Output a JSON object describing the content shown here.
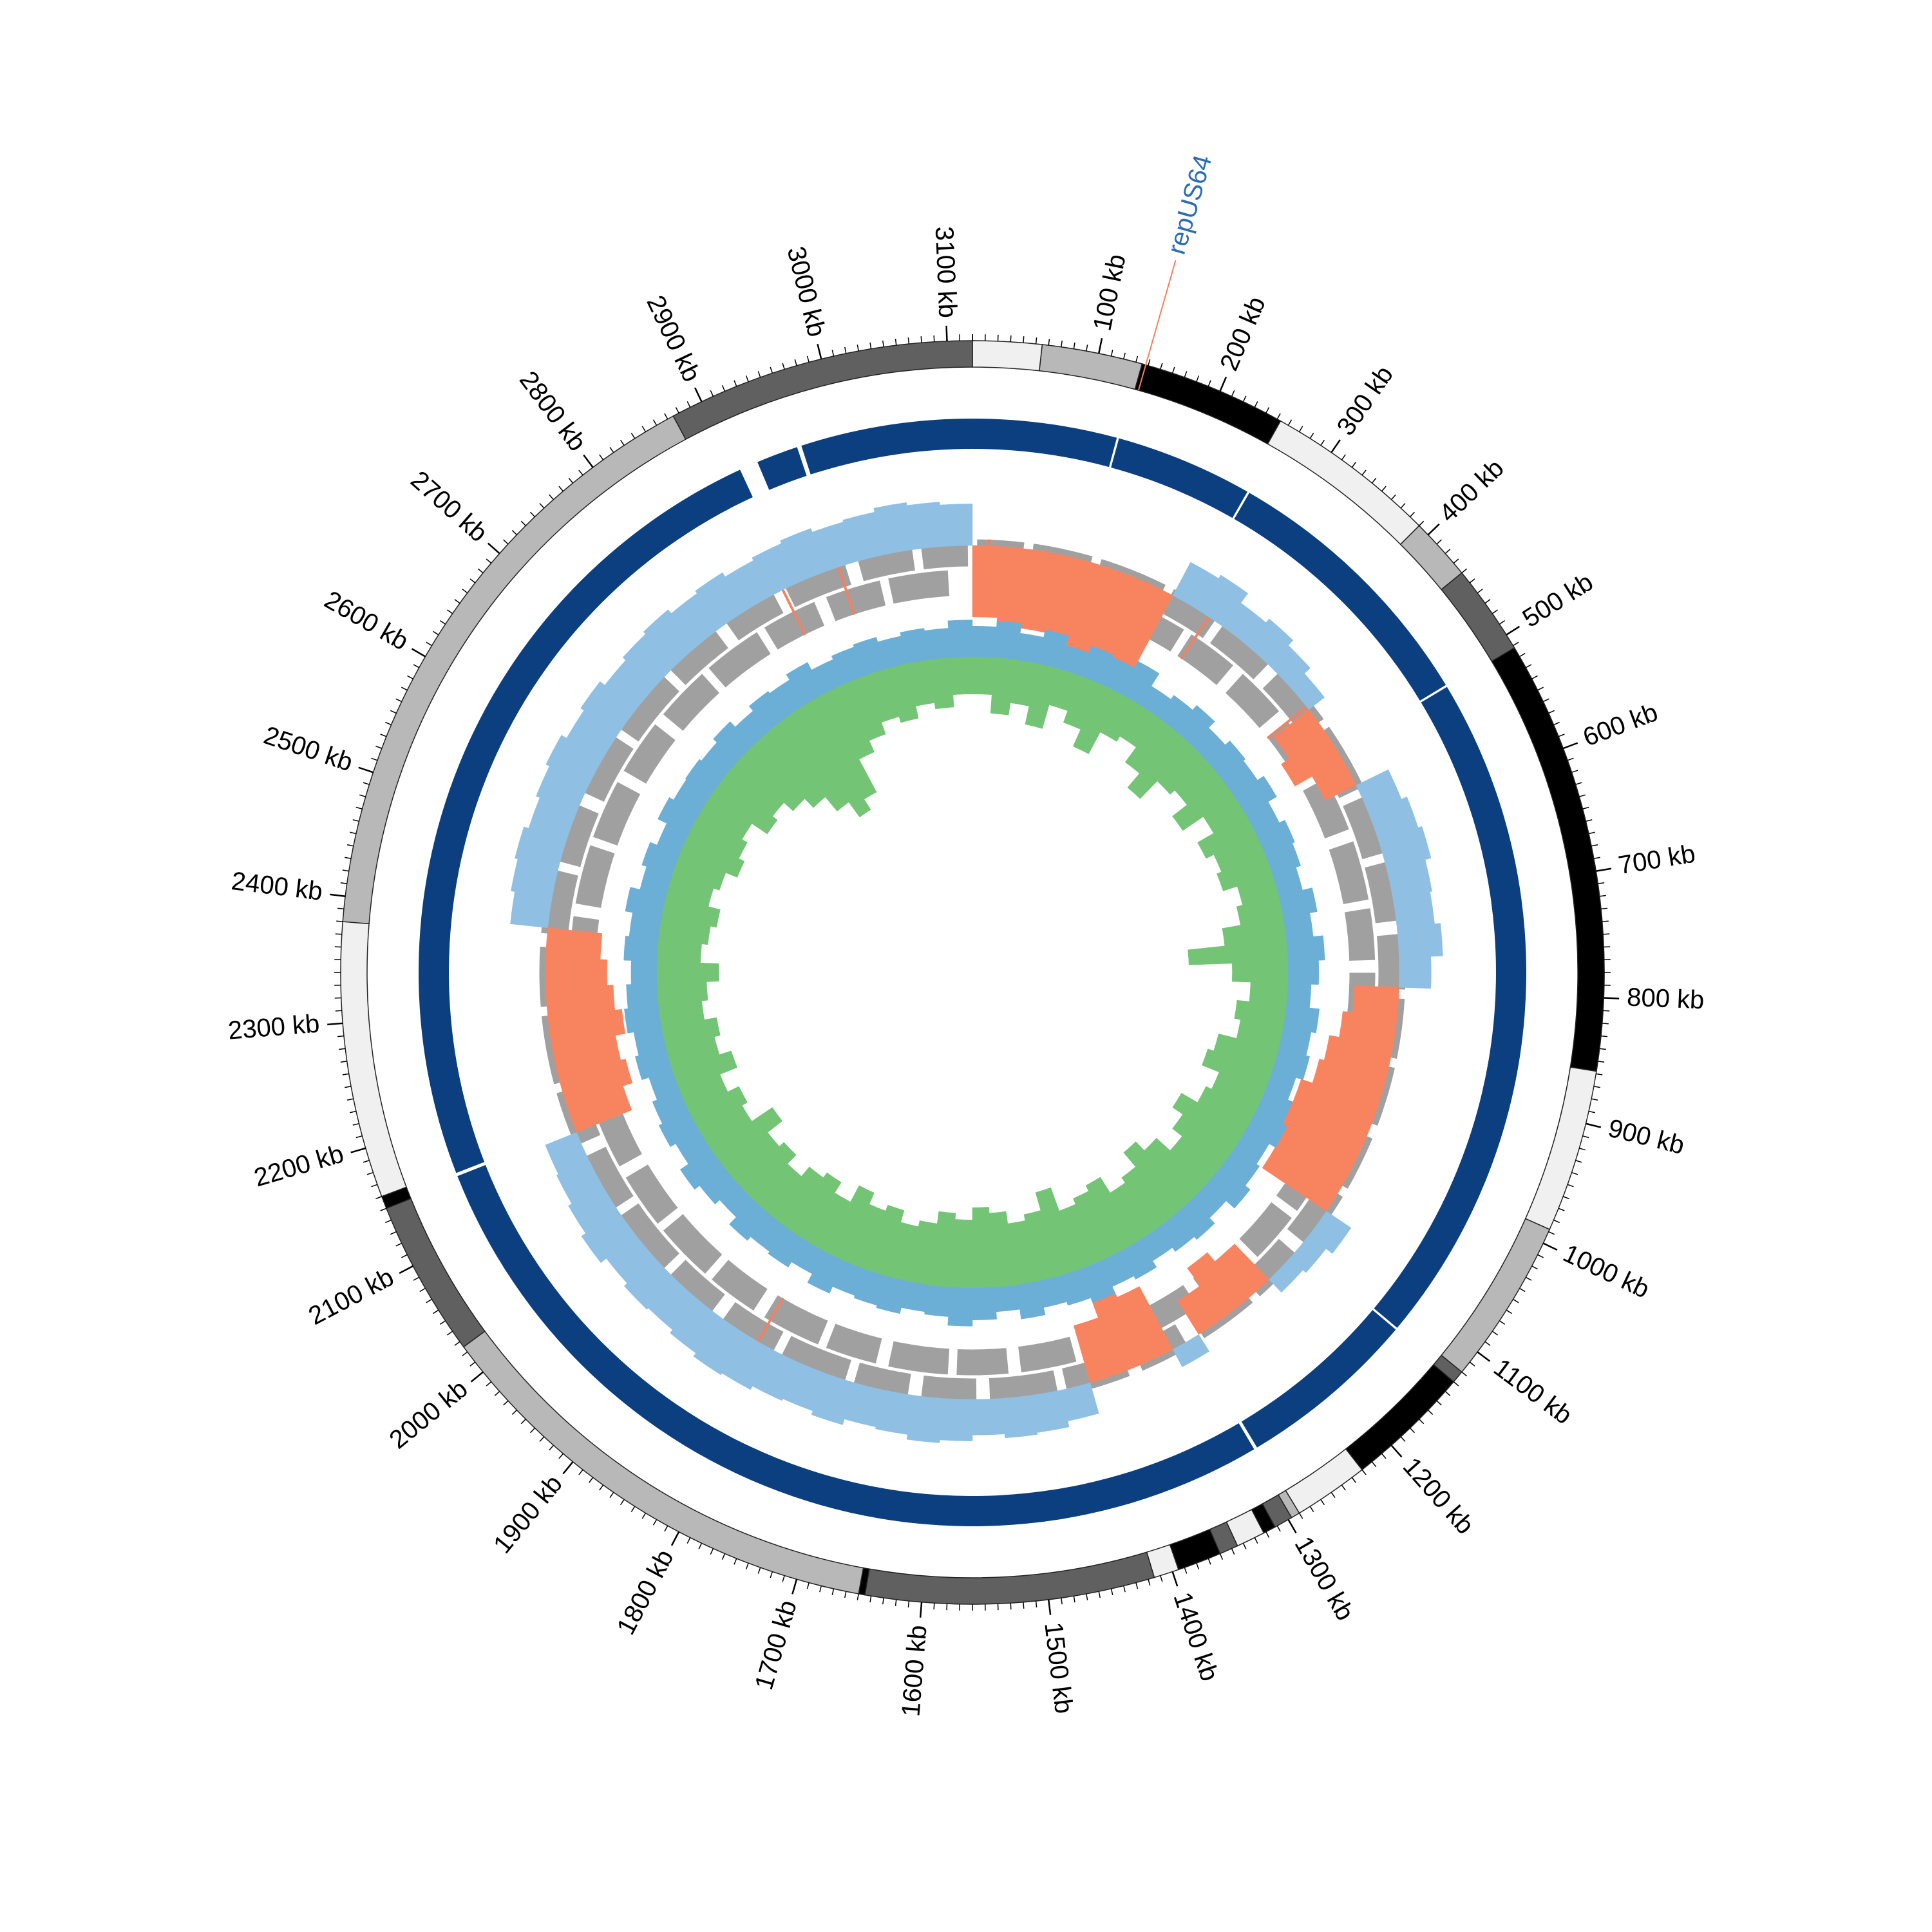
{
  "chart_data": {
    "type": "circular-genome",
    "xlim": [
      0,
      3120
    ],
    "minor_xtick_step": 10,
    "xticks": [
      {
        "value": 100,
        "label": "100 kb"
      },
      {
        "value": 200,
        "label": "200 kb"
      },
      {
        "value": 300,
        "label": "300 kb"
      },
      {
        "value": 400,
        "label": "400 kb"
      },
      {
        "value": 500,
        "label": "500 kb"
      },
      {
        "value": 600,
        "label": "600 kb"
      },
      {
        "value": 700,
        "label": "700 kb"
      },
      {
        "value": 800,
        "label": "800 kb"
      },
      {
        "value": 900,
        "label": "900 kb"
      },
      {
        "value": 1000,
        "label": "1000 kb"
      },
      {
        "value": 1100,
        "label": "1100 kb"
      },
      {
        "value": 1200,
        "label": "1200 kb"
      },
      {
        "value": 1300,
        "label": "1300 kb"
      },
      {
        "value": 1400,
        "label": "1400 kb"
      },
      {
        "value": 1500,
        "label": "1500 kb"
      },
      {
        "value": 1600,
        "label": "1600 kb"
      },
      {
        "value": 1700,
        "label": "1700 kb"
      },
      {
        "value": 1800,
        "label": "1800 kb"
      },
      {
        "value": 1900,
        "label": "1900 kb"
      },
      {
        "value": 2000,
        "label": "2000 kb"
      },
      {
        "value": 2100,
        "label": "2100 kb"
      },
      {
        "value": 2200,
        "label": "2200 kb"
      },
      {
        "value": 2300,
        "label": "2300 kb"
      },
      {
        "value": 2400,
        "label": "2400 kb"
      },
      {
        "value": 2500,
        "label": "2500 kb"
      },
      {
        "value": 2600,
        "label": "2600 kb"
      },
      {
        "value": 2700,
        "label": "2700 kb"
      },
      {
        "value": 2800,
        "label": "2800 kb"
      },
      {
        "value": 2900,
        "label": "2900 kb"
      },
      {
        "value": 3000,
        "label": "3000 kb"
      },
      {
        "value": 3100,
        "label": "3100 kb"
      }
    ],
    "ideogram": [
      {
        "start": 0,
        "end": 55,
        "color": "#f0f0f0"
      },
      {
        "start": 55,
        "end": 135,
        "color": "#b8b8b8"
      },
      {
        "start": 135,
        "end": 253,
        "color": "#000000"
      },
      {
        "start": 253,
        "end": 390,
        "color": "#f0f0f0"
      },
      {
        "start": 390,
        "end": 440,
        "color": "#b8b8b8"
      },
      {
        "start": 440,
        "end": 512,
        "color": "#606060"
      },
      {
        "start": 512,
        "end": 858,
        "color": "#000000"
      },
      {
        "start": 858,
        "end": 988,
        "color": "#f0f0f0"
      },
      {
        "start": 988,
        "end": 1120,
        "color": "#b8b8b8"
      },
      {
        "start": 1120,
        "end": 1130,
        "color": "#606060"
      },
      {
        "start": 1130,
        "end": 1230,
        "color": "#000000"
      },
      {
        "start": 1230,
        "end": 1290,
        "color": "#f0f0f0"
      },
      {
        "start": 1290,
        "end": 1297,
        "color": "#b8b8b8"
      },
      {
        "start": 1297,
        "end": 1312,
        "color": "#606060"
      },
      {
        "start": 1312,
        "end": 1322,
        "color": "#000000"
      },
      {
        "start": 1322,
        "end": 1345,
        "color": "#f0f0f0"
      },
      {
        "start": 1345,
        "end": 1360,
        "color": "#606060"
      },
      {
        "start": 1360,
        "end": 1395,
        "color": "#000000"
      },
      {
        "start": 1395,
        "end": 1415,
        "color": "#f0f0f0"
      },
      {
        "start": 1415,
        "end": 1645,
        "color": "#606060"
      },
      {
        "start": 1645,
        "end": 1650,
        "color": "#000000"
      },
      {
        "start": 1650,
        "end": 2025,
        "color": "#b8b8b8"
      },
      {
        "start": 2025,
        "end": 2150,
        "color": "#606060"
      },
      {
        "start": 2150,
        "end": 2160,
        "color": "#000000"
      },
      {
        "start": 2160,
        "end": 2380,
        "color": "#f0f0f0"
      },
      {
        "start": 2380,
        "end": 2875,
        "color": "#b8b8b8"
      },
      {
        "start": 2875,
        "end": 3120,
        "color": "#606060"
      }
    ],
    "annotation": {
      "text": "repUS64",
      "position": 138,
      "color": "#2a6db5",
      "line_color": "#f4805e"
    },
    "genes": [
      {
        "color": "#a0a0a0",
        "intervals": [
          [
            5,
            60
          ],
          [
            70,
            140
          ],
          [
            150,
            230
          ],
          [
            240,
            300
          ],
          [
            310,
            380
          ],
          [
            395,
            470
          ],
          [
            480,
            560
          ],
          [
            570,
            640
          ],
          [
            650,
            720
          ],
          [
            735,
            800
          ],
          [
            810,
            880
          ],
          [
            890,
            960
          ],
          [
            975,
            1040
          ],
          [
            1050,
            1120
          ],
          [
            1135,
            1200
          ],
          [
            1210,
            1280
          ],
          [
            1300,
            1360
          ],
          [
            1375,
            1450
          ],
          [
            1460,
            1540
          ],
          [
            1555,
            1620
          ],
          [
            1635,
            1700
          ],
          [
            1710,
            1790
          ],
          [
            1800,
            1870
          ],
          [
            1885,
            1950
          ],
          [
            1960,
            2040
          ],
          [
            2050,
            2120
          ],
          [
            2135,
            2200
          ],
          [
            2210,
            2290
          ],
          [
            2300,
            2370
          ],
          [
            2385,
            2460
          ],
          [
            2470,
            2540
          ],
          [
            2555,
            2630
          ],
          [
            2640,
            2720
          ],
          [
            2730,
            2800
          ],
          [
            2815,
            2880
          ],
          [
            2895,
            2970
          ],
          [
            2985,
            3050
          ],
          [
            3060,
            3115
          ]
        ]
      },
      {
        "color": "#a0a0a0",
        "intervals": [
          [
            0,
            35
          ],
          [
            45,
            110
          ],
          [
            125,
            190
          ],
          [
            200,
            275
          ],
          [
            285,
            350
          ],
          [
            365,
            430
          ],
          [
            445,
            520
          ],
          [
            530,
            600
          ],
          [
            615,
            690
          ],
          [
            700,
            765
          ],
          [
            780,
            850
          ],
          [
            860,
            930
          ],
          [
            945,
            1010
          ],
          [
            1020,
            1095
          ],
          [
            1105,
            1170
          ],
          [
            1185,
            1250
          ],
          [
            1265,
            1330
          ],
          [
            1345,
            1420
          ],
          [
            1430,
            1500
          ],
          [
            1515,
            1580
          ],
          [
            1590,
            1665
          ],
          [
            1680,
            1745
          ],
          [
            1755,
            1830
          ],
          [
            1845,
            1910
          ],
          [
            1920,
            1995
          ],
          [
            2005,
            2075
          ],
          [
            2090,
            2160
          ],
          [
            2170,
            2245
          ],
          [
            2255,
            2330
          ],
          [
            2345,
            2410
          ],
          [
            2425,
            2500
          ],
          [
            2510,
            2585
          ],
          [
            2600,
            2670
          ],
          [
            2685,
            2755
          ],
          [
            2765,
            2840
          ],
          [
            2850,
            2920
          ],
          [
            2935,
            3005
          ],
          [
            3015,
            3090
          ]
        ]
      }
    ],
    "rna_features": {
      "color": "#f4805e",
      "intervals": [
        [
          18,
          21
        ],
        [
          290,
          293
        ],
        [
          445,
          448
        ],
        [
          1820,
          1823
        ],
        [
          2890,
          2893
        ],
        [
          2960,
          2963
        ]
      ]
    },
    "contigs": {
      "color": "#0b3f7f",
      "intervals": [
        [
          0,
          131
        ],
        [
          133,
          258
        ],
        [
          260,
          509
        ],
        [
          511,
          1126
        ],
        [
          1128,
          1292
        ],
        [
          1295,
          2153
        ],
        [
          2156,
          2905
        ],
        [
          2922,
          2960
        ],
        [
          2964,
          3120
        ]
      ]
    },
    "tracks": [
      {
        "ylim": [
          -1,
          0.5
        ],
        "series": [
          {
            "pos_color": "#8fc0e3",
            "neg_color": "#f8845f",
            "values": [
              -0.72,
              -0.85,
              -0.8,
              -0.9,
              -0.95,
              -1.0,
              -0.88,
              0.38,
              0.42,
              0.3,
              0.35,
              0.28,
              0.2,
              -0.45,
              -0.55,
              -0.35,
              0.36,
              0.42,
              0.46,
              0.4,
              0.38,
              0.44,
              0.32,
              -0.45,
              -0.55,
              -0.65,
              -0.7,
              -0.82,
              -0.9,
              -0.95,
              -0.78,
              0.3,
              0.22,
              0.18,
              -0.5,
              -0.62,
              -0.4,
              0.2,
              -0.72,
              -0.8,
              -0.6,
              0.32,
              0.38,
              0.4,
              0.36,
              0.42,
              0.45,
              0.4,
              0.38,
              0.44,
              0.4,
              0.42,
              0.46,
              0.48,
              0.44,
              0.4,
              0.42,
              0.38,
              0.45,
              0.4,
              0.36,
              0.34,
              -0.6,
              -0.7,
              -0.65,
              -0.75,
              -0.68,
              -0.62,
              -0.55,
              0.38,
              0.42,
              0.45,
              0.4,
              0.44,
              0.48,
              0.42,
              0.46,
              0.4,
              0.44,
              0.47,
              0.42,
              0.45,
              0.4,
              0.43,
              0.46,
              0.42,
              0.44,
              0.48,
              0.45,
              0.42
            ]
          }
        ]
      },
      {
        "ylim": [
          -1,
          0.35
        ],
        "series": [
          {
            "pos_color": "#6baed6",
            "values": [
              0.25,
              0.3,
              0.22,
              0.28,
              0.2,
              0.26,
              0.24,
              0.3,
              0.18,
              0.22,
              0.27,
              0.2,
              0.25,
              0.23,
              0.29,
              0.21,
              0.26,
              0.24,
              0.2,
              0.28,
              0.22,
              0.3,
              0.25,
              0.19,
              0.27,
              0.23,
              0.26,
              0.2,
              0.24,
              0.28,
              0.22,
              0.25,
              0.3,
              0.21,
              0.27,
              0.24,
              0.2,
              0.26,
              0.23,
              0.29,
              0.25,
              0.22,
              0.28,
              0.2,
              0.26,
              0.31,
              0.24,
              0.22,
              0.27,
              0.25,
              0.23,
              0.29,
              0.21,
              0.26,
              0.24,
              0.28,
              0.2,
              0.25,
              0.3,
              0.22,
              0.27,
              0.24,
              0.2,
              0.26,
              0.23,
              0.28,
              0.25,
              0.21,
              0.27,
              0.24,
              0.3,
              0.22,
              0.26,
              0.2,
              0.28,
              0.24,
              0.25,
              0.23,
              0.27,
              0.21,
              0.26,
              0.24,
              0.29,
              0.22,
              0.25,
              0.27,
              0.23,
              0.26,
              0.24,
              0.3
            ]
          },
          {
            "neg_color": "#74c476",
            "values": [
              -0.3,
              -0.45,
              -0.35,
              -0.5,
              -0.3,
              -0.4,
              -0.55,
              -0.35,
              -0.3,
              -0.45,
              -0.6,
              -0.4,
              -0.35,
              -0.5,
              -0.3,
              -0.45,
              -0.38,
              -0.42,
              -0.3,
              -0.35,
              -0.5,
              -0.8,
              -0.45,
              -0.3,
              -0.4,
              -0.35,
              -0.5,
              -0.55,
              -0.4,
              -0.45,
              -0.6,
              -0.5,
              -0.4,
              -0.55,
              -0.65,
              -0.5,
              -0.45,
              -0.6,
              -0.55,
              -0.5,
              -0.7,
              -0.55,
              -0.5,
              -0.6,
              -0.65,
              -0.55,
              -0.6,
              -0.5,
              -0.45,
              -0.55,
              -0.5,
              -0.6,
              -0.45,
              -0.55,
              -0.5,
              -0.4,
              -0.5,
              -0.45,
              -0.6,
              -0.4,
              -0.45,
              -0.35,
              -0.5,
              -0.4,
              -0.45,
              -0.35,
              -0.4,
              -0.5,
              -0.35,
              -0.4,
              -0.45,
              -0.35,
              -0.4,
              -0.5,
              -0.45,
              -0.4,
              -0.55,
              -0.5,
              -0.6,
              -0.7,
              -0.85,
              -1.0,
              -0.9,
              -0.6,
              -0.5,
              -0.4,
              -0.45,
              -0.35,
              -0.4,
              -0.3
            ]
          }
        ]
      }
    ]
  }
}
